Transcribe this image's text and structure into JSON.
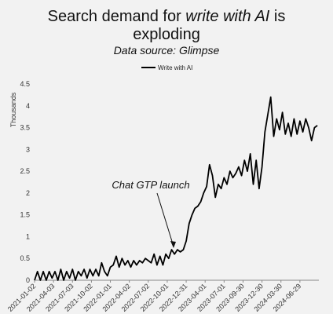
{
  "title_line1_prefix": "Search demand for ",
  "title_line1_em": "write with AI",
  "title_line1_suffix": " is",
  "title_line2": "exploding",
  "subtitle": "Data source: Glimpse",
  "colors": {
    "line": "#000000",
    "background": "#f2f2f2",
    "axis": "#555555"
  },
  "chart_data": {
    "type": "line",
    "title": "Search demand for write with AI is exploding",
    "subtitle": "Data source: Glimpse",
    "ylabel": "Thousands",
    "xlabel": "",
    "ylim": [
      0,
      4.5
    ],
    "yticks": [
      0,
      0.5,
      1,
      1.5,
      2,
      2.5,
      3,
      3.5,
      4,
      4.5
    ],
    "ytick_labels": [
      "0",
      "0.5",
      "1",
      "1.5",
      "2",
      "2.5",
      "3",
      "3.5",
      "4",
      "4.5"
    ],
    "xlim": [
      "2021-01-02",
      "2024-09-28"
    ],
    "xticks": [
      "2021-01-02",
      "2021-04-03",
      "2021-07-03",
      "2021-10-02",
      "2022-01-01",
      "2022-04-02",
      "2022-07-02",
      "2022-10-01",
      "2022-12-31",
      "2023-04-01",
      "2023-07-01",
      "2023-09-30",
      "2023-12-30",
      "2024-03-30",
      "2024-06-29"
    ],
    "grid": false,
    "legend": {
      "position": "top-center",
      "entries": [
        "Write with AI"
      ]
    },
    "annotation": {
      "text": "Chat GTP launch",
      "x": "2022-11-26",
      "y": 0.7
    },
    "series": [
      {
        "name": "Write with AI",
        "points": [
          [
            "2021-01-02",
            0
          ],
          [
            "2021-01-16",
            0.2
          ],
          [
            "2021-01-30",
            0
          ],
          [
            "2021-02-13",
            0.2
          ],
          [
            "2021-02-27",
            0
          ],
          [
            "2021-03-13",
            0.2
          ],
          [
            "2021-03-27",
            0.05
          ],
          [
            "2021-04-10",
            0.2
          ],
          [
            "2021-04-24",
            0
          ],
          [
            "2021-05-08",
            0.25
          ],
          [
            "2021-05-22",
            0
          ],
          [
            "2021-06-05",
            0.2
          ],
          [
            "2021-06-19",
            0.05
          ],
          [
            "2021-07-03",
            0.25
          ],
          [
            "2021-07-17",
            0
          ],
          [
            "2021-07-31",
            0.2
          ],
          [
            "2021-08-14",
            0.1
          ],
          [
            "2021-08-28",
            0.25
          ],
          [
            "2021-09-11",
            0.05
          ],
          [
            "2021-09-25",
            0.25
          ],
          [
            "2021-10-09",
            0.1
          ],
          [
            "2021-10-23",
            0.25
          ],
          [
            "2021-11-06",
            0.1
          ],
          [
            "2021-11-20",
            0.4
          ],
          [
            "2021-12-04",
            0.2
          ],
          [
            "2021-12-18",
            0.1
          ],
          [
            "2022-01-01",
            0.3
          ],
          [
            "2022-01-15",
            0.35
          ],
          [
            "2022-01-29",
            0.55
          ],
          [
            "2022-02-12",
            0.3
          ],
          [
            "2022-02-26",
            0.5
          ],
          [
            "2022-03-12",
            0.35
          ],
          [
            "2022-03-26",
            0.45
          ],
          [
            "2022-04-09",
            0.3
          ],
          [
            "2022-04-23",
            0.45
          ],
          [
            "2022-05-07",
            0.35
          ],
          [
            "2022-05-21",
            0.45
          ],
          [
            "2022-06-04",
            0.4
          ],
          [
            "2022-06-18",
            0.5
          ],
          [
            "2022-07-02",
            0.45
          ],
          [
            "2022-07-16",
            0.4
          ],
          [
            "2022-07-30",
            0.6
          ],
          [
            "2022-08-13",
            0.35
          ],
          [
            "2022-08-27",
            0.55
          ],
          [
            "2022-09-10",
            0.35
          ],
          [
            "2022-09-24",
            0.6
          ],
          [
            "2022-10-08",
            0.5
          ],
          [
            "2022-10-22",
            0.7
          ],
          [
            "2022-11-05",
            0.6
          ],
          [
            "2022-11-19",
            0.7
          ],
          [
            "2022-12-03",
            0.65
          ],
          [
            "2022-12-17",
            0.7
          ],
          [
            "2022-12-31",
            0.9
          ],
          [
            "2023-01-14",
            1.3
          ],
          [
            "2023-01-28",
            1.5
          ],
          [
            "2023-02-11",
            1.65
          ],
          [
            "2023-02-25",
            1.7
          ],
          [
            "2023-03-11",
            1.8
          ],
          [
            "2023-03-25",
            2.0
          ],
          [
            "2023-04-08",
            2.15
          ],
          [
            "2023-04-22",
            2.65
          ],
          [
            "2023-05-06",
            2.4
          ],
          [
            "2023-05-20",
            1.9
          ],
          [
            "2023-06-03",
            2.2
          ],
          [
            "2023-06-17",
            2.1
          ],
          [
            "2023-07-01",
            2.35
          ],
          [
            "2023-07-15",
            2.2
          ],
          [
            "2023-07-29",
            2.5
          ],
          [
            "2023-08-12",
            2.35
          ],
          [
            "2023-08-26",
            2.45
          ],
          [
            "2023-09-09",
            2.6
          ],
          [
            "2023-09-23",
            2.4
          ],
          [
            "2023-10-07",
            2.75
          ],
          [
            "2023-10-21",
            2.5
          ],
          [
            "2023-11-04",
            2.9
          ],
          [
            "2023-11-18",
            2.2
          ],
          [
            "2023-12-02",
            2.75
          ],
          [
            "2023-12-16",
            2.1
          ],
          [
            "2023-12-30",
            2.6
          ],
          [
            "2024-01-13",
            3.4
          ],
          [
            "2024-01-27",
            3.8
          ],
          [
            "2024-02-10",
            4.2
          ],
          [
            "2024-02-24",
            3.3
          ],
          [
            "2024-03-09",
            3.7
          ],
          [
            "2024-03-23",
            3.45
          ],
          [
            "2024-04-06",
            3.85
          ],
          [
            "2024-04-20",
            3.35
          ],
          [
            "2024-05-04",
            3.6
          ],
          [
            "2024-05-18",
            3.3
          ],
          [
            "2024-06-01",
            3.7
          ],
          [
            "2024-06-15",
            3.35
          ],
          [
            "2024-06-29",
            3.65
          ],
          [
            "2024-07-13",
            3.4
          ],
          [
            "2024-07-27",
            3.7
          ],
          [
            "2024-08-10",
            3.5
          ],
          [
            "2024-08-24",
            3.2
          ],
          [
            "2024-09-07",
            3.5
          ],
          [
            "2024-09-21",
            3.55
          ]
        ]
      }
    ]
  }
}
